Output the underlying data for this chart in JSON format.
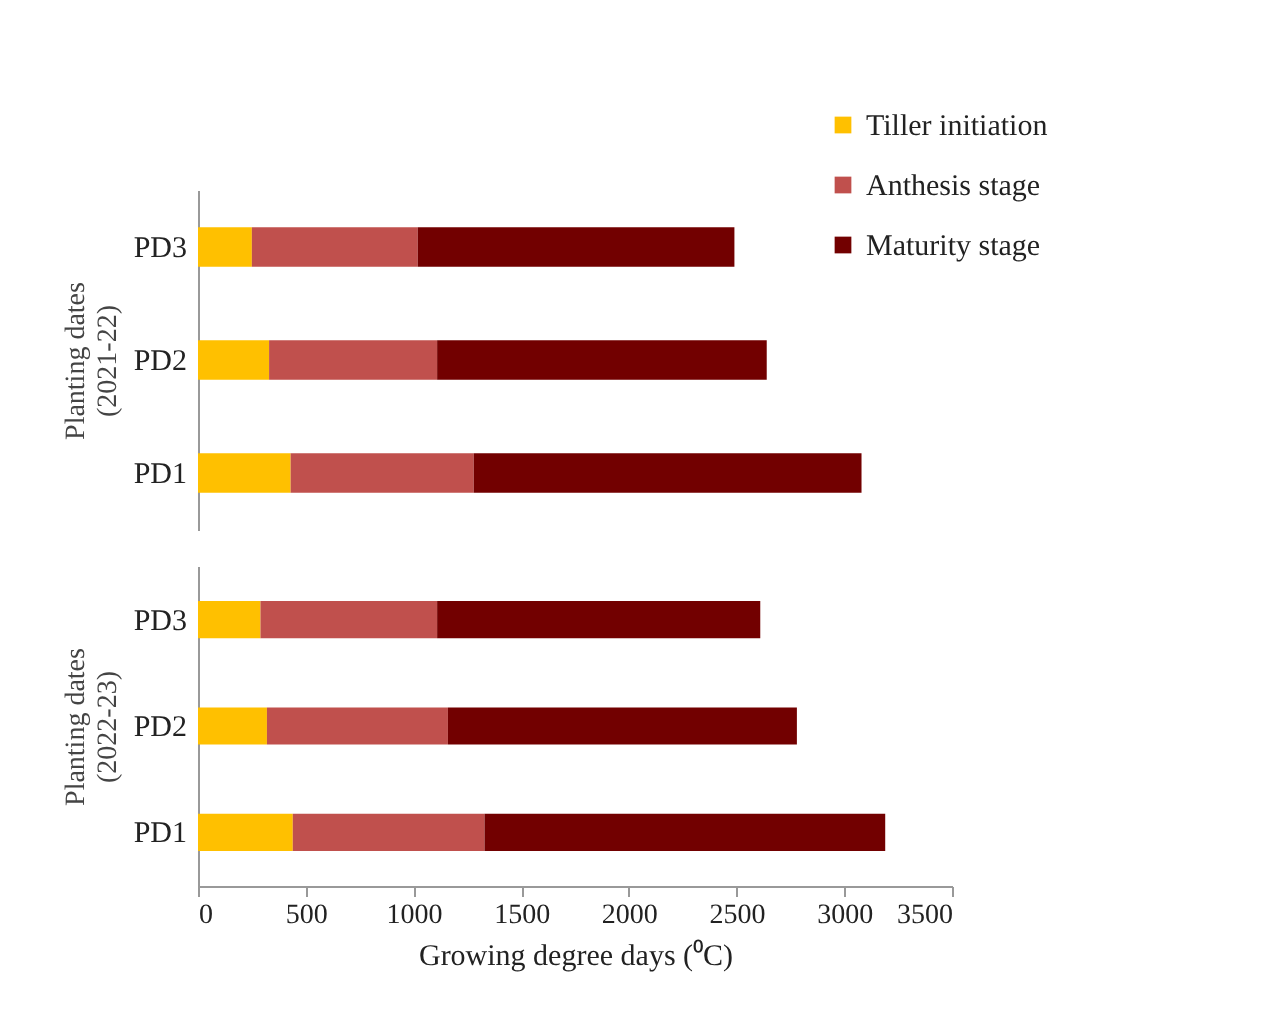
{
  "chart_data": [
    {
      "type": "bar",
      "orientation": "horizontal",
      "stacked": true,
      "ylabel": "Planting dates\n(2021-22)",
      "categories": [
        "PD3",
        "PD2",
        "PD1"
      ],
      "xlim": [
        0,
        3500
      ],
      "xticks": [
        0,
        500,
        1000,
        1500,
        2000,
        2500,
        3000,
        3500
      ],
      "tick_labels": "y",
      "legend": "top right",
      "grid": false,
      "series": [
        {
          "name": "Tiller initiation",
          "color": "#ffc000",
          "values": [
            250,
            330,
            430
          ]
        },
        {
          "name": "Anthesis stage",
          "color": "#c0504d",
          "values": [
            770,
            780,
            850
          ]
        },
        {
          "name": "Maturity stage",
          "color": "#720000",
          "values": [
            1470,
            1530,
            1800
          ]
        }
      ]
    },
    {
      "type": "bar",
      "orientation": "horizontal",
      "stacked": true,
      "xlabel": "Growing degree days (⁰C)",
      "ylabel": "Planting dates\n(2022-23)",
      "categories": [
        "PD3",
        "PD2",
        "PD1"
      ],
      "xlim": [
        0,
        3500
      ],
      "xticks": [
        0,
        500,
        1000,
        1500,
        2000,
        2500,
        3000,
        3500
      ],
      "legend": false,
      "grid": false,
      "series": [
        {
          "color": "#ffc000",
          "values": [
            290,
            320,
            440
          ]
        },
        {
          "color": "#c0504d",
          "values": [
            820,
            840,
            890
          ]
        },
        {
          "color": "#720000",
          "values": [
            1500,
            1620,
            1860
          ]
        }
      ]
    }
  ]
}
